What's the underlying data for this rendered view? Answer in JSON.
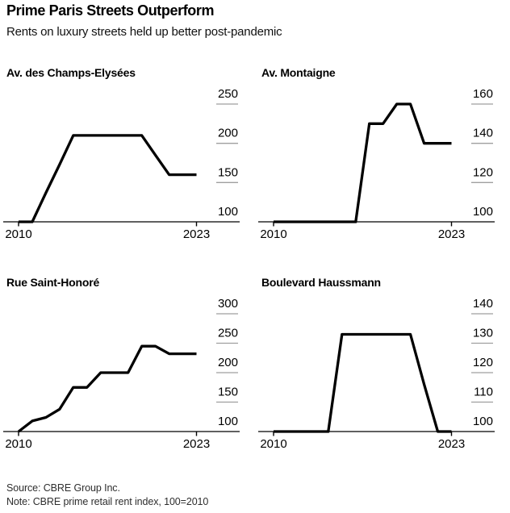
{
  "header": {
    "title": "Prime Paris Streets Outperform",
    "subtitle": "Rents on luxury streets held up better post-pandemic"
  },
  "footer": {
    "source": "Source: CBRE Group Inc.",
    "note": "Note: CBRE prime retail rent index, 100=2010"
  },
  "axis": {
    "x_start_label": "2010",
    "x_end_label": "2023"
  },
  "colors": {
    "line": "#000000",
    "axis_line": "#000000",
    "grid_dash": "#9f9f9f",
    "text": "#000000",
    "background": "#ffffff"
  },
  "chart_data": [
    {
      "type": "line",
      "title": "Av. des Champs-Elysées",
      "x": [
        2010,
        2011,
        2012,
        2013,
        2014,
        2015,
        2016,
        2017,
        2018,
        2019,
        2020,
        2021,
        2022,
        2023
      ],
      "values": [
        100,
        100,
        137,
        173,
        210,
        210,
        210,
        210,
        210,
        210,
        185,
        160,
        160,
        160
      ],
      "yticks": [
        100,
        150,
        200,
        250
      ],
      "ylim": [
        100,
        250
      ],
      "xlim": [
        2010,
        2023
      ],
      "grid": "right-side tick dashes",
      "legend": "none"
    },
    {
      "type": "line",
      "title": "Av. Montaigne",
      "x": [
        2010,
        2011,
        2012,
        2013,
        2014,
        2015,
        2016,
        2017,
        2018,
        2019,
        2020,
        2021,
        2022,
        2023
      ],
      "values": [
        100,
        100,
        100,
        100,
        100,
        100,
        100,
        150,
        150,
        160,
        160,
        140,
        140,
        140
      ],
      "yticks": [
        100,
        120,
        140,
        160
      ],
      "ylim": [
        100,
        160
      ],
      "xlim": [
        2010,
        2023
      ],
      "grid": "right-side tick dashes",
      "legend": "none"
    },
    {
      "type": "line",
      "title": "Rue Saint-Honoré",
      "x": [
        2010,
        2011,
        2012,
        2013,
        2014,
        2015,
        2016,
        2017,
        2018,
        2019,
        2020,
        2021,
        2022,
        2023
      ],
      "values": [
        100,
        118,
        124,
        138,
        175,
        175,
        200,
        200,
        200,
        245,
        245,
        232,
        232,
        232
      ],
      "yticks": [
        100,
        150,
        200,
        250,
        300
      ],
      "ylim": [
        100,
        300
      ],
      "xlim": [
        2010,
        2023
      ],
      "grid": "right-side tick dashes",
      "legend": "none"
    },
    {
      "type": "line",
      "title": "Boulevard Haussmann",
      "x": [
        2010,
        2011,
        2012,
        2013,
        2014,
        2015,
        2016,
        2017,
        2018,
        2019,
        2020,
        2021,
        2022,
        2023
      ],
      "values": [
        100,
        100,
        100,
        100,
        100,
        133,
        133,
        133,
        133,
        133,
        133,
        116,
        100,
        100
      ],
      "yticks": [
        100,
        110,
        120,
        130,
        140
      ],
      "ylim": [
        100,
        140
      ],
      "xlim": [
        2010,
        2023
      ],
      "grid": "right-side tick dashes",
      "legend": "none"
    }
  ]
}
